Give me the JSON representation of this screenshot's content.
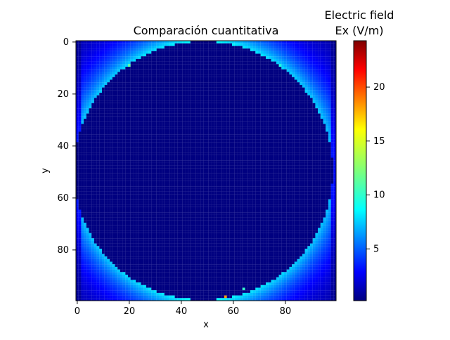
{
  "chart_data": {
    "type": "heatmap",
    "title": "Comparación cuantitativa",
    "xlabel": "x",
    "ylabel": "y",
    "x_ticks": [
      0,
      20,
      40,
      60,
      80
    ],
    "y_ticks": [
      0,
      20,
      40,
      60,
      80
    ],
    "xlim": [
      -0.5,
      99.5
    ],
    "ylim": [
      99.5,
      -0.5
    ],
    "grid_size": [
      100,
      100
    ],
    "colormap": "jet",
    "colorbar": {
      "title_line1": "Electric field",
      "title_line2": "Ex (V/m)",
      "ticks": [
        5,
        10,
        15,
        20
      ],
      "range": [
        0.2,
        24.3
      ]
    },
    "field_model": {
      "circle_center": [
        48.5,
        49.5
      ],
      "circle_radius": 49.8,
      "inside_value": 0.2,
      "edge_peak_value": 8.5,
      "hot_spots": [
        {
          "x": 57,
          "y": 98,
          "value": 17.5
        },
        {
          "x": 64,
          "y": 95,
          "value": 10.5
        },
        {
          "x": 20,
          "y": 9,
          "value": 11.5
        },
        {
          "x": 78,
          "y": 9,
          "value": 10.0
        }
      ]
    }
  },
  "palette": {
    "background": "#ffffff",
    "axis": "#000000"
  }
}
